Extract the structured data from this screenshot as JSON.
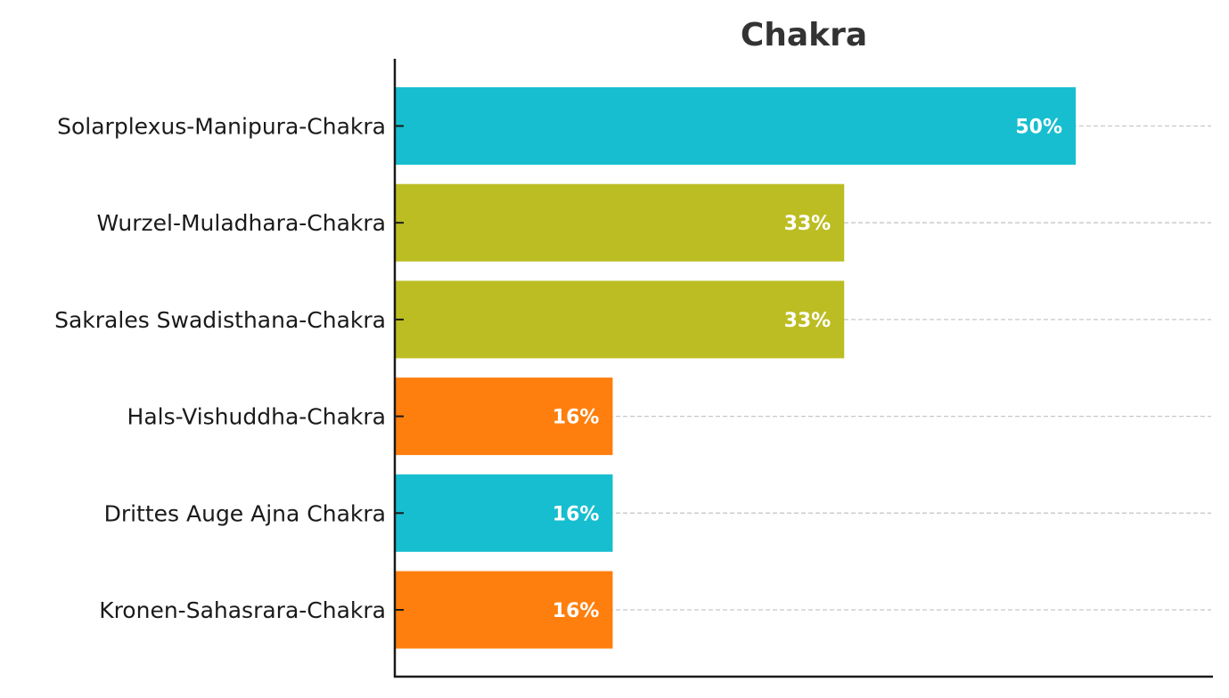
{
  "chart_data": {
    "type": "bar",
    "orientation": "horizontal",
    "title": "Chakra",
    "xlabel": "",
    "ylabel": "",
    "categories": [
      "Solarplexus-Manipura-Chakra",
      "Wurzel-Muladhara-Chakra",
      "Sakrales Swadisthana-Chakra",
      "Hals-Vishuddha-Chakra",
      "Drittes Auge Ajna Chakra",
      "Kronen-Sahasrara-Chakra"
    ],
    "values": [
      50,
      33,
      33,
      16,
      16,
      16
    ],
    "labels": [
      "50%",
      "33%",
      "33%",
      "16%",
      "16%",
      "16%"
    ],
    "colors": [
      "#17becf",
      "#bcbd22",
      "#bcbd22",
      "#ff7f0e",
      "#17becf",
      "#ff7f0e"
    ],
    "xlim": [
      0,
      60
    ],
    "grid": "horizontal-dashed",
    "legend": "none"
  }
}
